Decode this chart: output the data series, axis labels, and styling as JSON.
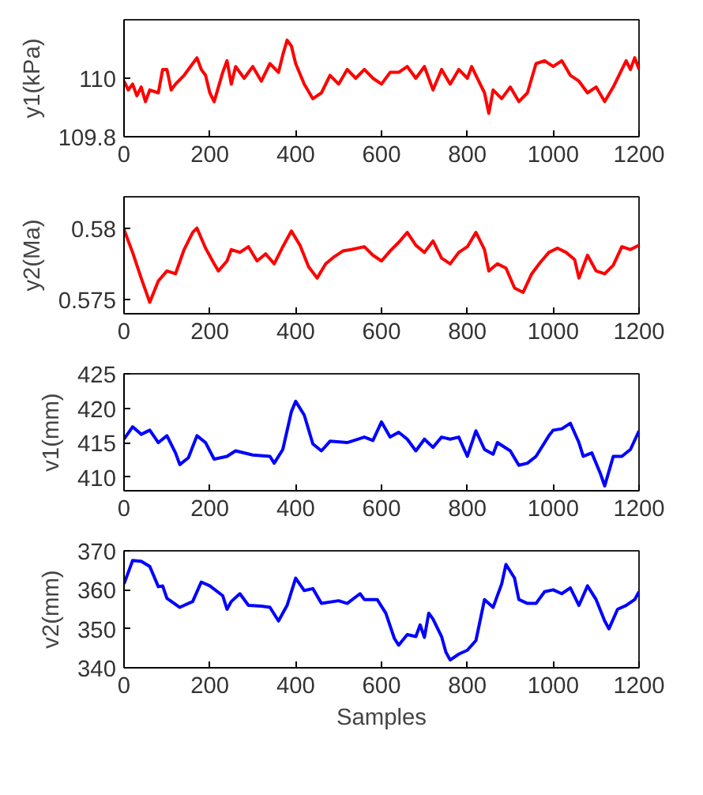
{
  "chart_data": [
    {
      "type": "line",
      "ylabel": "y1(kPa)",
      "xlim": [
        0,
        1200
      ],
      "ylim": [
        109.8,
        110.2
      ],
      "xticks": [
        0,
        200,
        400,
        600,
        800,
        1000,
        1200
      ],
      "yticks": [
        109.8,
        110
      ],
      "grid": false,
      "x": [
        0,
        10,
        20,
        30,
        40,
        50,
        60,
        80,
        90,
        100,
        110,
        120,
        140,
        160,
        170,
        180,
        190,
        200,
        210,
        220,
        230,
        240,
        250,
        260,
        280,
        300,
        320,
        340,
        360,
        370,
        380,
        390,
        400,
        420,
        440,
        460,
        480,
        500,
        520,
        540,
        560,
        580,
        600,
        620,
        640,
        660,
        680,
        700,
        720,
        740,
        760,
        780,
        800,
        810,
        820,
        840,
        850,
        860,
        880,
        900,
        920,
        940,
        960,
        980,
        1000,
        1020,
        1040,
        1060,
        1080,
        1100,
        1120,
        1140,
        1160,
        1170,
        1180,
        1190,
        1200
      ],
      "series": [
        {
          "color": "#ff0000",
          "values": [
            109.99,
            109.96,
            109.98,
            109.94,
            109.97,
            109.92,
            109.96,
            109.95,
            110.03,
            110.03,
            109.96,
            109.98,
            110.01,
            110.05,
            110.07,
            110.03,
            110.01,
            109.95,
            109.92,
            109.97,
            110.02,
            110.06,
            109.98,
            110.04,
            110.0,
            110.04,
            109.99,
            110.05,
            110.02,
            110.08,
            110.13,
            110.11,
            110.05,
            109.98,
            109.93,
            109.95,
            110.01,
            109.98,
            110.03,
            110.0,
            110.03,
            110.0,
            109.98,
            110.02,
            110.02,
            110.04,
            110.0,
            110.04,
            109.96,
            110.03,
            109.98,
            110.03,
            110.0,
            110.04,
            110.01,
            109.95,
            109.88,
            109.96,
            109.93,
            109.97,
            109.92,
            109.95,
            110.05,
            110.06,
            110.04,
            110.06,
            110.01,
            109.99,
            109.95,
            109.97,
            109.92,
            109.97,
            110.03,
            110.06,
            110.03,
            110.07,
            110.03
          ]
        }
      ]
    },
    {
      "type": "line",
      "ylabel": "y2(Ma)",
      "xlim": [
        0,
        1200
      ],
      "ylim": [
        0.574,
        0.5822
      ],
      "xticks": [
        0,
        200,
        400,
        600,
        800,
        1000,
        1200
      ],
      "yticks": [
        0.575,
        0.58
      ],
      "grid": false,
      "x": [
        0,
        20,
        40,
        60,
        80,
        100,
        120,
        140,
        160,
        170,
        190,
        210,
        220,
        240,
        250,
        270,
        290,
        310,
        330,
        350,
        370,
        390,
        410,
        430,
        450,
        470,
        490,
        510,
        530,
        560,
        580,
        600,
        620,
        640,
        660,
        680,
        700,
        720,
        740,
        760,
        780,
        800,
        820,
        840,
        850,
        870,
        890,
        910,
        930,
        950,
        970,
        990,
        1010,
        1030,
        1050,
        1060,
        1080,
        1100,
        1120,
        1140,
        1160,
        1180,
        1200
      ],
      "series": [
        {
          "color": "#ff0000",
          "values": [
            0.5799,
            0.5783,
            0.5765,
            0.5748,
            0.5763,
            0.577,
            0.5768,
            0.5785,
            0.5797,
            0.58,
            0.5786,
            0.5775,
            0.577,
            0.5777,
            0.5785,
            0.5783,
            0.5787,
            0.5777,
            0.5782,
            0.5775,
            0.5787,
            0.5798,
            0.5788,
            0.5773,
            0.5765,
            0.5775,
            0.578,
            0.5784,
            0.5785,
            0.5787,
            0.5781,
            0.5777,
            0.5784,
            0.579,
            0.5797,
            0.5788,
            0.5783,
            0.5791,
            0.5779,
            0.5775,
            0.5783,
            0.5787,
            0.5797,
            0.5785,
            0.577,
            0.5775,
            0.5772,
            0.5758,
            0.5755,
            0.5768,
            0.5776,
            0.5783,
            0.5786,
            0.5783,
            0.5778,
            0.5765,
            0.5781,
            0.577,
            0.5768,
            0.5774,
            0.5787,
            0.5785,
            0.5788
          ]
        }
      ]
    },
    {
      "type": "line",
      "ylabel": "v1(mm)",
      "xlim": [
        0,
        1200
      ],
      "ylim": [
        408,
        425
      ],
      "xticks": [
        0,
        200,
        400,
        600,
        800,
        1000,
        1200
      ],
      "yticks": [
        410,
        415,
        420,
        425
      ],
      "grid": false,
      "x": [
        0,
        20,
        40,
        60,
        80,
        100,
        120,
        130,
        150,
        170,
        190,
        210,
        240,
        260,
        300,
        340,
        350,
        370,
        390,
        400,
        420,
        440,
        460,
        480,
        520,
        560,
        580,
        600,
        620,
        640,
        660,
        680,
        700,
        720,
        740,
        760,
        780,
        800,
        820,
        840,
        860,
        870,
        900,
        920,
        940,
        960,
        990,
        1000,
        1020,
        1040,
        1060,
        1070,
        1090,
        1110,
        1120,
        1140,
        1160,
        1180,
        1200
      ],
      "series": [
        {
          "color": "#0000ff",
          "values": [
            415.5,
            417.3,
            416.2,
            416.8,
            415.0,
            416.0,
            413.5,
            411.8,
            412.8,
            416.0,
            415.0,
            412.6,
            413.0,
            413.8,
            413.2,
            413.0,
            412.0,
            414.0,
            419.5,
            421.0,
            419.0,
            414.8,
            413.8,
            415.2,
            415.0,
            415.8,
            415.3,
            418.0,
            415.8,
            416.5,
            415.5,
            413.8,
            415.5,
            414.3,
            415.8,
            415.5,
            415.8,
            413.0,
            416.7,
            414.0,
            413.3,
            415.0,
            413.8,
            411.7,
            412.0,
            413.0,
            416.0,
            416.8,
            417.0,
            417.8,
            415.0,
            413.0,
            413.5,
            410.5,
            408.7,
            413.0,
            413.0,
            414.0,
            416.7
          ]
        }
      ]
    },
    {
      "type": "line",
      "ylabel": "v2(mm)",
      "xlabel": "Samples",
      "xlim": [
        0,
        1200
      ],
      "ylim": [
        340,
        370
      ],
      "xticks": [
        0,
        200,
        400,
        600,
        800,
        1000,
        1200
      ],
      "yticks": [
        340,
        350,
        360,
        370
      ],
      "grid": false,
      "x": [
        0,
        20,
        40,
        60,
        80,
        90,
        100,
        130,
        160,
        180,
        200,
        230,
        240,
        250,
        270,
        290,
        320,
        340,
        360,
        380,
        400,
        420,
        440,
        460,
        500,
        520,
        550,
        560,
        590,
        610,
        630,
        640,
        660,
        680,
        690,
        700,
        710,
        720,
        740,
        750,
        760,
        780,
        800,
        820,
        840,
        860,
        880,
        890,
        910,
        920,
        940,
        960,
        980,
        1000,
        1020,
        1040,
        1060,
        1080,
        1100,
        1120,
        1130,
        1150,
        1170,
        1190,
        1200
      ],
      "series": [
        {
          "color": "#0000ff",
          "values": [
            361.5,
            367.5,
            367.3,
            366.0,
            360.8,
            361.0,
            357.8,
            355.5,
            357.0,
            362.0,
            361.0,
            358.5,
            355.0,
            357.0,
            359.0,
            356.0,
            355.8,
            355.5,
            352.0,
            356.0,
            363.0,
            359.8,
            360.3,
            356.5,
            357.2,
            356.5,
            359.0,
            357.5,
            357.5,
            354.0,
            347.5,
            345.8,
            348.5,
            348.0,
            351.0,
            347.8,
            354.0,
            352.5,
            348.0,
            344.0,
            342.0,
            343.5,
            344.5,
            347.0,
            357.5,
            355.5,
            361.5,
            366.5,
            363.0,
            357.5,
            356.5,
            356.5,
            359.5,
            360.0,
            359.0,
            360.5,
            356.0,
            361.0,
            357.5,
            352.0,
            350.0,
            355.0,
            356.0,
            357.5,
            359.5
          ]
        }
      ]
    }
  ]
}
